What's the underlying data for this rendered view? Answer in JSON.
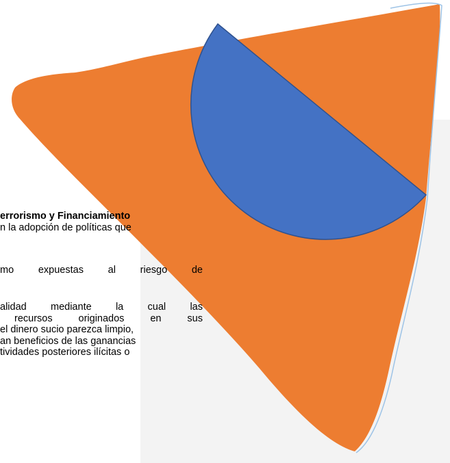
{
  "document": {
    "lines": [
      "errorismo y Financiamiento",
      "n la adopción de políticas que",
      "mo expuestas al riesgo de",
      "alidad mediante la cual las",
      "recursos originados en sus",
      "el dinero sucio parezca limpio,",
      "an beneficios de las ganancias",
      "tividades posteriores ilícitas o"
    ]
  }
}
